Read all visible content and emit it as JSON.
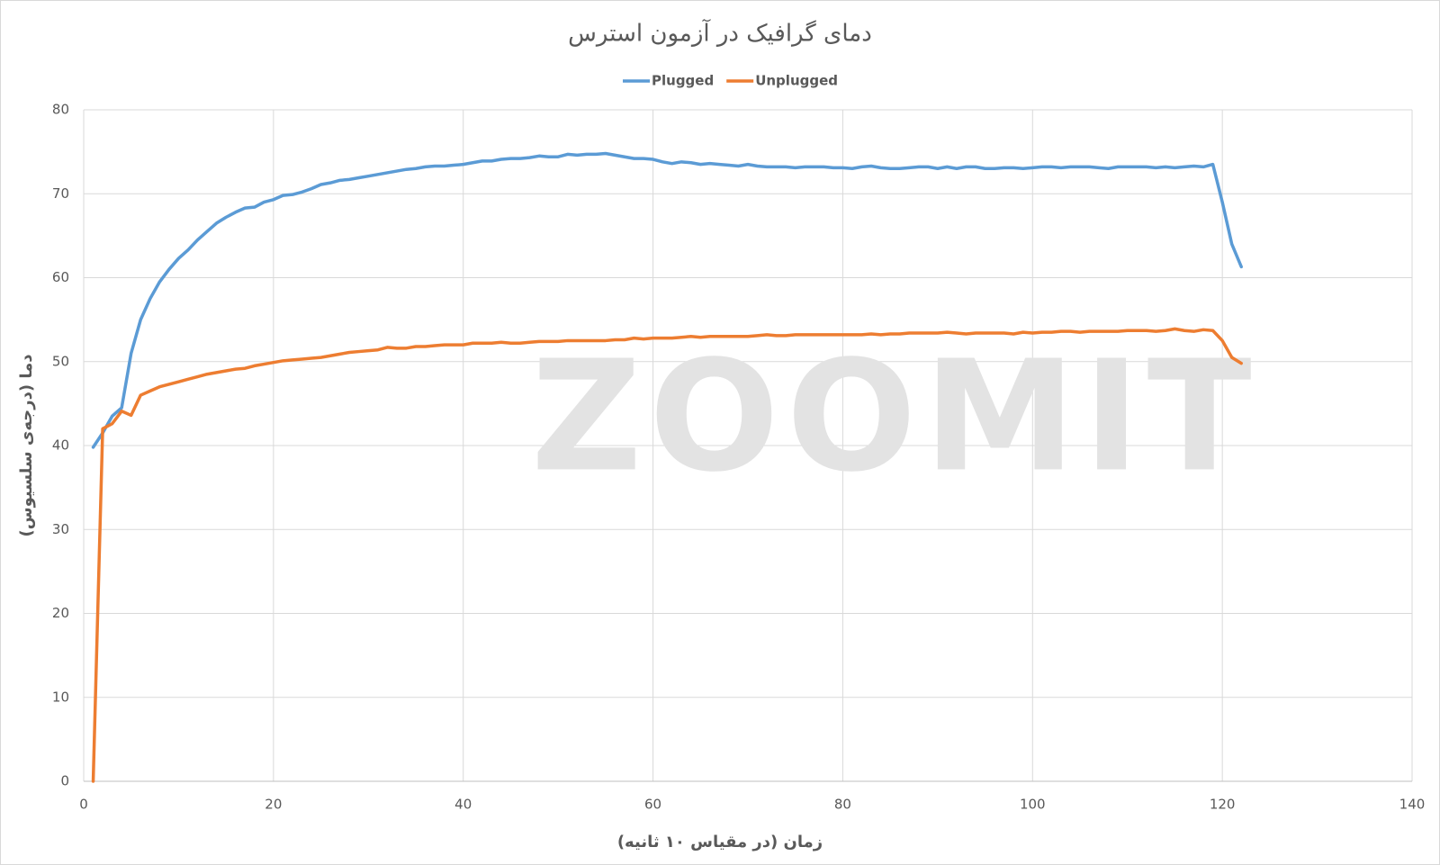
{
  "chart_data": {
    "type": "line",
    "title": "دمای گرافیک در آزمون استرس",
    "x_label": "زمان (در مقیاس ۱۰ ثانیه)",
    "y_label": "دما (درجه‌ی سلسیوس)",
    "watermark": "ZOOMIT",
    "legend": "top",
    "grid": true,
    "xlim": [
      0,
      140
    ],
    "xticks": [
      0,
      20,
      40,
      60,
      80,
      100,
      120,
      140
    ],
    "ylim": [
      0,
      80
    ],
    "yticks": [
      0,
      10,
      20,
      30,
      40,
      50,
      60,
      70,
      80
    ],
    "x": [
      1,
      2,
      3,
      4,
      5,
      6,
      7,
      8,
      9,
      10,
      11,
      12,
      13,
      14,
      15,
      16,
      17,
      18,
      19,
      20,
      21,
      22,
      23,
      24,
      25,
      26,
      27,
      28,
      29,
      30,
      31,
      32,
      33,
      34,
      35,
      36,
      37,
      38,
      39,
      40,
      41,
      42,
      43,
      44,
      45,
      46,
      47,
      48,
      49,
      50,
      51,
      52,
      53,
      54,
      55,
      56,
      57,
      58,
      59,
      60,
      61,
      62,
      63,
      64,
      65,
      66,
      67,
      68,
      69,
      70,
      71,
      72,
      73,
      74,
      75,
      76,
      77,
      78,
      79,
      80,
      81,
      82,
      83,
      84,
      85,
      86,
      87,
      88,
      89,
      90,
      91,
      92,
      93,
      94,
      95,
      96,
      97,
      98,
      99,
      100,
      101,
      102,
      103,
      104,
      105,
      106,
      107,
      108,
      109,
      110,
      111,
      112,
      113,
      114,
      115,
      116,
      117,
      118,
      119,
      120,
      121,
      122
    ],
    "series": [
      {
        "name": "Plugged",
        "color": "#5b9bd5",
        "values": [
          39.8,
          41.5,
          43.5,
          44.5,
          51,
          55,
          57.5,
          59.5,
          61,
          62.3,
          63.3,
          64.5,
          65.5,
          66.5,
          67.2,
          67.8,
          68.3,
          68.4,
          69,
          69.3,
          69.8,
          69.9,
          70.2,
          70.6,
          71.1,
          71.3,
          71.6,
          71.7,
          71.9,
          72.1,
          72.3,
          72.5,
          72.7,
          72.9,
          73.0,
          73.2,
          73.3,
          73.3,
          73.4,
          73.5,
          73.7,
          73.9,
          73.9,
          74.1,
          74.2,
          74.2,
          74.3,
          74.5,
          74.4,
          74.4,
          74.7,
          74.6,
          74.7,
          74.7,
          74.8,
          74.6,
          74.4,
          74.2,
          74.2,
          74.1,
          73.8,
          73.6,
          73.8,
          73.7,
          73.5,
          73.6,
          73.5,
          73.4,
          73.3,
          73.5,
          73.3,
          73.2,
          73.2,
          73.2,
          73.1,
          73.2,
          73.2,
          73.2,
          73.1,
          73.1,
          73.0,
          73.2,
          73.3,
          73.1,
          73.0,
          73.0,
          73.1,
          73.2,
          73.2,
          73.0,
          73.2,
          73.0,
          73.2,
          73.2,
          73.0,
          73.0,
          73.1,
          73.1,
          73.0,
          73.1,
          73.2,
          73.2,
          73.1,
          73.2,
          73.2,
          73.2,
          73.1,
          73.0,
          73.2,
          73.2,
          73.2,
          73.2,
          73.1,
          73.2,
          73.1,
          73.2,
          73.3,
          73.2,
          73.5,
          69,
          64,
          61.3
        ]
      },
      {
        "name": "Unplugged",
        "color": "#ed7d31",
        "values": [
          0,
          42,
          42.6,
          44.1,
          43.6,
          46,
          46.5,
          47,
          47.3,
          47.6,
          47.9,
          48.2,
          48.5,
          48.7,
          48.9,
          49.1,
          49.2,
          49.5,
          49.7,
          49.9,
          50.1,
          50.2,
          50.3,
          50.4,
          50.5,
          50.7,
          50.9,
          51.1,
          51.2,
          51.3,
          51.4,
          51.7,
          51.6,
          51.6,
          51.8,
          51.8,
          51.9,
          52.0,
          52.0,
          52.0,
          52.2,
          52.2,
          52.2,
          52.3,
          52.2,
          52.2,
          52.3,
          52.4,
          52.4,
          52.4,
          52.5,
          52.5,
          52.5,
          52.5,
          52.5,
          52.6,
          52.6,
          52.8,
          52.7,
          52.8,
          52.8,
          52.8,
          52.9,
          53.0,
          52.9,
          53.0,
          53.0,
          53.0,
          53.0,
          53.0,
          53.1,
          53.2,
          53.1,
          53.1,
          53.2,
          53.2,
          53.2,
          53.2,
          53.2,
          53.2,
          53.2,
          53.2,
          53.3,
          53.2,
          53.3,
          53.3,
          53.4,
          53.4,
          53.4,
          53.4,
          53.5,
          53.4,
          53.3,
          53.4,
          53.4,
          53.4,
          53.4,
          53.3,
          53.5,
          53.4,
          53.5,
          53.5,
          53.6,
          53.6,
          53.5,
          53.6,
          53.6,
          53.6,
          53.6,
          53.7,
          53.7,
          53.7,
          53.6,
          53.7,
          53.9,
          53.7,
          53.6,
          53.8,
          53.7,
          52.5,
          50.5,
          49.8
        ]
      }
    ]
  }
}
